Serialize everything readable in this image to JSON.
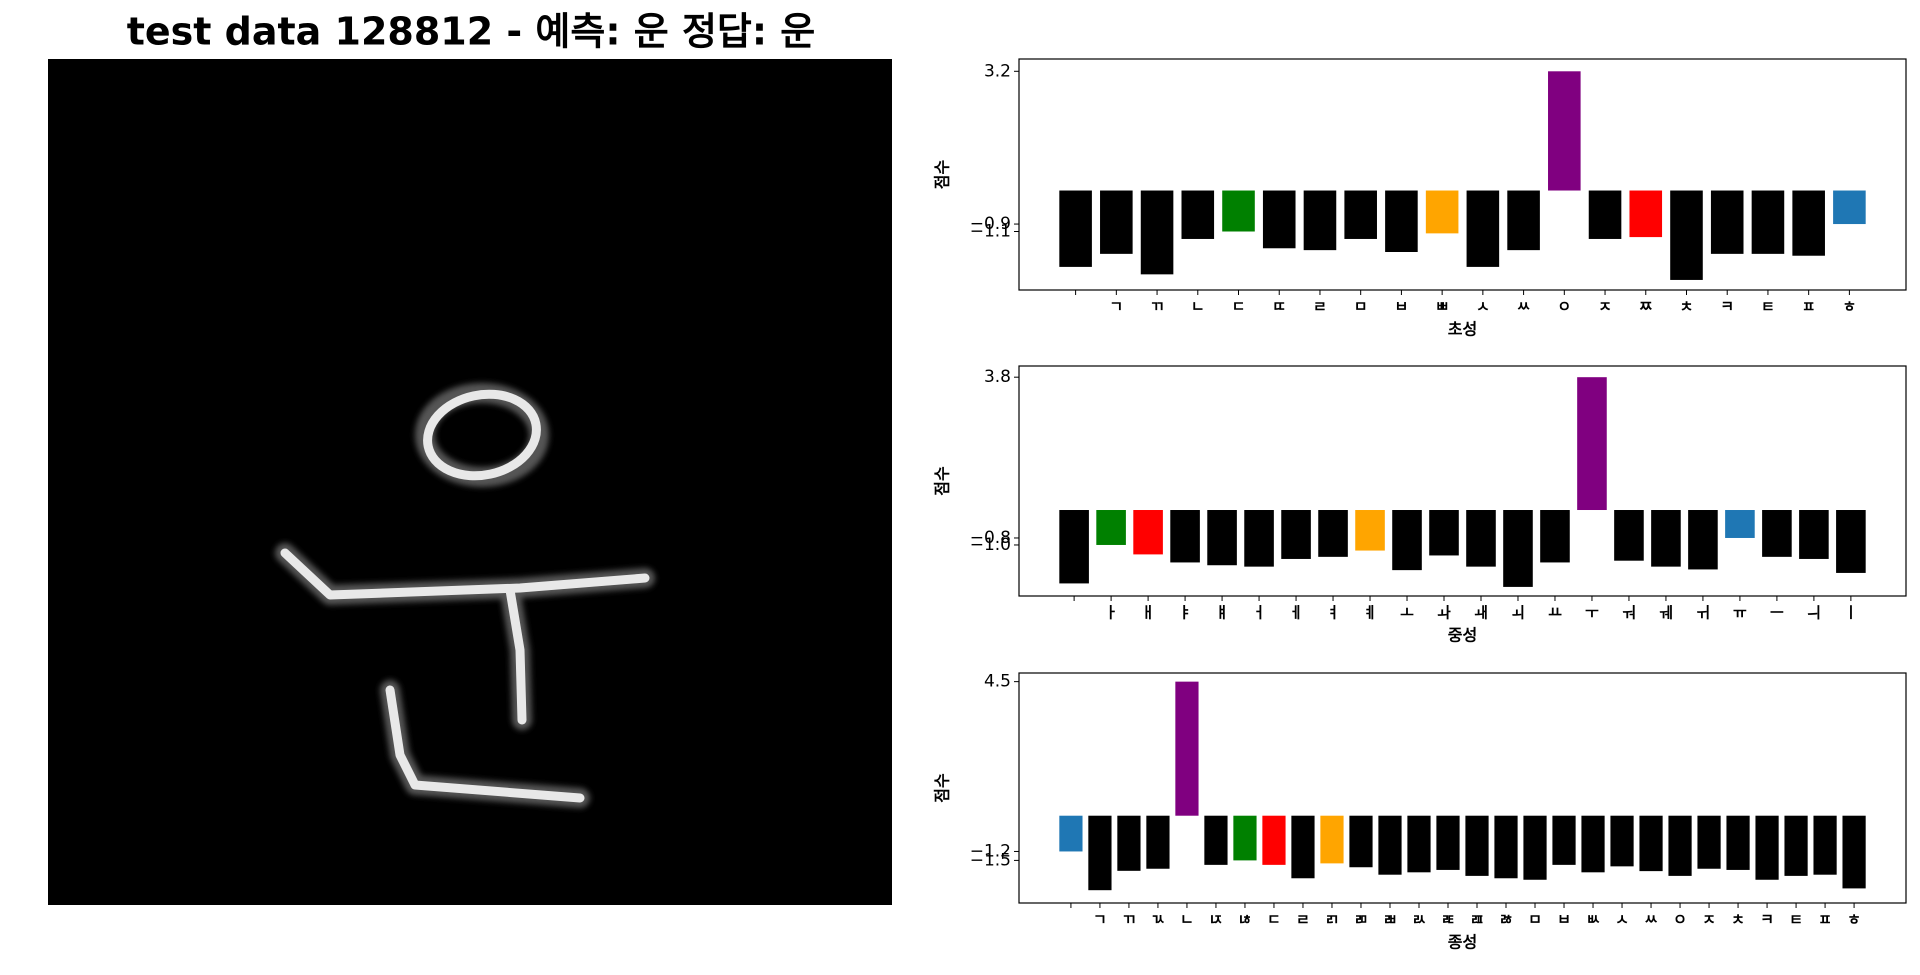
{
  "title": "test data 128812 - 예측: 운 정답: 운",
  "chart_data": [
    {
      "type": "bar",
      "xlabel": "초성",
      "ylabel": "점수",
      "categories": [
        null,
        "ㄱ",
        "ㄲ",
        "ㄴ",
        "ㄷ",
        "ㄸ",
        "ㄹ",
        "ㅁ",
        "ㅂ",
        "ㅃ",
        "ㅅ",
        "ㅆ",
        "ㅇ",
        "ㅈ",
        "ㅉ",
        "ㅊ",
        "ㅋ",
        "ㅌ",
        "ㅍ",
        "ㅎ"
      ],
      "values": [
        -2.05,
        -1.7,
        -2.25,
        -1.3,
        -1.1,
        -1.55,
        -1.6,
        -1.3,
        -1.65,
        -1.15,
        -2.05,
        -1.6,
        3.2,
        -1.3,
        -1.25,
        -2.4,
        -1.7,
        -1.7,
        -1.75,
        -0.9
      ],
      "colors": [
        "#000000",
        "#000000",
        "#000000",
        "#000000",
        "#008000",
        "#000000",
        "#000000",
        "#000000",
        "#000000",
        "#ffa500",
        "#000000",
        "#000000",
        "#800080",
        "#000000",
        "#ff0000",
        "#000000",
        "#000000",
        "#000000",
        "#000000",
        "#1f77b4"
      ],
      "ylim": [
        -2.67,
        3.53
      ],
      "yticks": [
        3.2,
        {
          "value": -0.9,
          "label": "−0.9"
        },
        {
          "value": -1.1,
          "label": "−1.1"
        }
      ]
    },
    {
      "type": "bar",
      "xlabel": "중성",
      "ylabel": "점수",
      "categories": [
        null,
        "ㅏ",
        "ㅐ",
        "ㅑ",
        "ㅒ",
        "ㅓ",
        "ㅔ",
        "ㅕ",
        "ㅖ",
        "ㅗ",
        "ㅘ",
        "ㅙ",
        "ㅚ",
        "ㅛ",
        "ㅜ",
        "ㅝ",
        "ㅞ",
        "ㅟ",
        "ㅠ",
        "ㅡ",
        "ㅢ",
        "ㅣ"
      ],
      "values": [
        -2.1,
        -1.0,
        -1.27,
        -1.5,
        -1.58,
        -1.62,
        -1.4,
        -1.34,
        -1.16,
        -1.72,
        -1.3,
        -1.62,
        -2.2,
        -1.5,
        3.8,
        -1.45,
        -1.62,
        -1.7,
        -0.8,
        -1.34,
        -1.4,
        -1.8
      ],
      "colors": [
        "#000000",
        "#008000",
        "#ff0000",
        "#000000",
        "#000000",
        "#000000",
        "#000000",
        "#000000",
        "#ffa500",
        "#000000",
        "#000000",
        "#000000",
        "#000000",
        "#000000",
        "#800080",
        "#000000",
        "#000000",
        "#000000",
        "#1f77b4",
        "#000000",
        "#000000",
        "#000000"
      ],
      "ylim": [
        -2.46,
        4.12
      ],
      "yticks": [
        3.8,
        {
          "value": -0.8,
          "label": "−0.8"
        },
        {
          "value": -1.0,
          "label": "−1.0"
        }
      ]
    },
    {
      "type": "bar",
      "xlabel": "종성",
      "ylabel": "점수",
      "categories": [
        null,
        "ㄱ",
        "ㄲ",
        "ㄳ",
        "ㄴ",
        "ㄵ",
        "ㄶ",
        "ㄷ",
        "ㄹ",
        "ㄺ",
        "ㄻ",
        "ㄼ",
        "ㄽ",
        "ㄾ",
        "ㄿ",
        "ㅀ",
        "ㅁ",
        "ㅂ",
        "ㅄ",
        "ㅅ",
        "ㅆ",
        "ㅇ",
        "ㅈ",
        "ㅊ",
        "ㅋ",
        "ㅌ",
        "ㅍ",
        "ㅎ"
      ],
      "values": [
        -1.2,
        -2.5,
        -1.85,
        -1.78,
        4.5,
        -1.65,
        -1.5,
        -1.65,
        -2.1,
        -1.6,
        -1.73,
        -1.98,
        -1.9,
        -1.82,
        -2.02,
        -2.1,
        -2.15,
        -1.65,
        -1.9,
        -1.7,
        -1.86,
        -2.02,
        -1.78,
        -1.82,
        -2.15,
        -2.02,
        -1.98,
        -2.44
      ],
      "colors": [
        "#1f77b4",
        "#000000",
        "#000000",
        "#000000",
        "#800080",
        "#000000",
        "#008000",
        "#ff0000",
        "#000000",
        "#ffa500",
        "#000000",
        "#000000",
        "#000000",
        "#000000",
        "#000000",
        "#000000",
        "#000000",
        "#000000",
        "#000000",
        "#000000",
        "#000000",
        "#000000",
        "#000000",
        "#000000",
        "#000000",
        "#000000",
        "#000000",
        "#000000"
      ],
      "ylim": [
        -2.93,
        4.79
      ],
      "yticks": [
        4.5,
        {
          "value": -1.2,
          "label": "−1.2"
        },
        {
          "value": -1.5,
          "label": "−1.5"
        }
      ]
    }
  ]
}
